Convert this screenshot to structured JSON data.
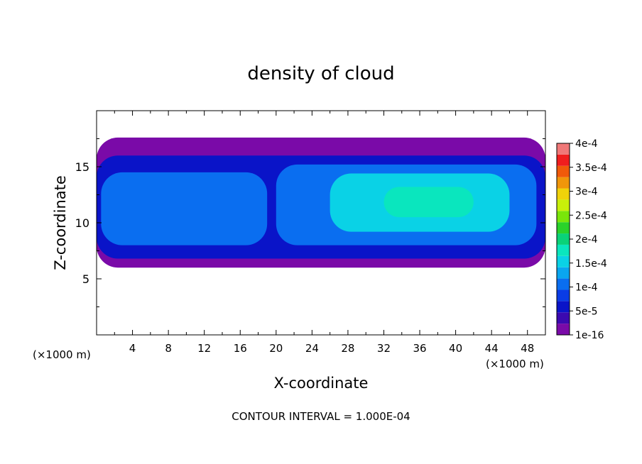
{
  "chart_data": {
    "type": "heatmap",
    "title": "density of cloud",
    "xlabel": "X-coordinate",
    "ylabel": "Z-coordinate",
    "x_unit_left": "(×1000 m)",
    "x_unit_right": "(×1000 m)",
    "contour_interval_text": "CONTOUR INTERVAL = 1.000E-04",
    "xlim": [
      0,
      50
    ],
    "ylim": [
      0,
      20
    ],
    "x_ticks": [
      4,
      8,
      12,
      16,
      20,
      24,
      28,
      32,
      36,
      40,
      44,
      48
    ],
    "x_tick_labels": [
      "4",
      "8",
      "12",
      "16",
      "20",
      "24",
      "28",
      "32",
      "36",
      "40",
      "44",
      "48"
    ],
    "y_ticks": [
      5,
      10,
      15
    ],
    "y_tick_labels": [
      "5",
      "10",
      "15"
    ],
    "colorbar": {
      "levels": [
        1e-16,
        2.5e-05,
        5e-05,
        7.5e-05,
        0.0001,
        0.000125,
        0.00015,
        0.000175,
        0.0002,
        0.000225,
        0.00025,
        0.000275,
        0.0003,
        0.000325,
        0.00035,
        0.000375,
        0.0004
      ],
      "labels": [
        "1e-16",
        "5e-5",
        "1e-4",
        "1.5e-4",
        "2e-4",
        "2.5e-4",
        "3e-4",
        "3.5e-4",
        "4e-4"
      ],
      "colors": [
        "#7a0aa8",
        "#3b09b0",
        "#0a14c8",
        "#0a3ce6",
        "#0a6ef0",
        "#0aa6f0",
        "#0ad2e6",
        "#0ae6be",
        "#0ad278",
        "#2ad22a",
        "#7ae60a",
        "#c8f00a",
        "#f0d20a",
        "#f0960a",
        "#f05a0a",
        "#f01e1e",
        "#f07878"
      ]
    },
    "cloud_regions": [
      {
        "level": 0,
        "x": [
          0,
          50
        ],
        "z_bottom": 6.0,
        "z_top": 17.6
      },
      {
        "level": 2,
        "x": [
          0,
          50
        ],
        "z_bottom": 6.8,
        "z_top": 16.0
      },
      {
        "level": 4,
        "x": [
          0.5,
          19
        ],
        "z_bottom": 8.0,
        "z_top": 14.5
      },
      {
        "level": 4,
        "x": [
          20,
          49
        ],
        "z_bottom": 8.0,
        "z_top": 15.2
      },
      {
        "level": 6,
        "x": [
          26,
          46
        ],
        "z_bottom": 9.2,
        "z_top": 14.4
      },
      {
        "level": 7,
        "x": [
          32,
          42
        ],
        "z_bottom": 10.5,
        "z_top": 13.2
      }
    ]
  }
}
